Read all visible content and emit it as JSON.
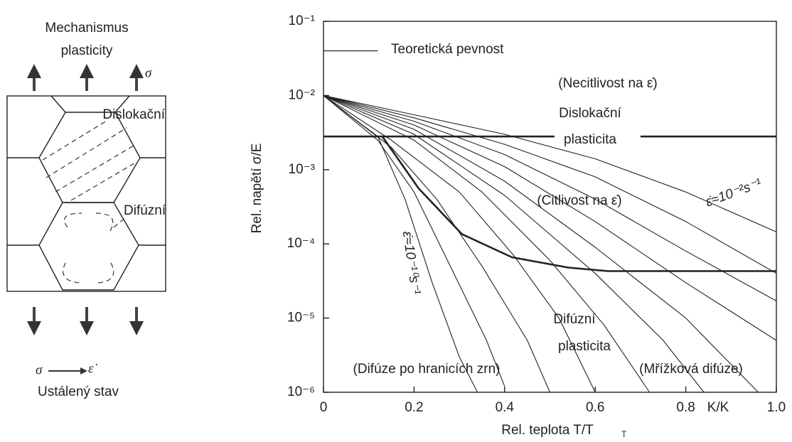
{
  "diagram": {
    "title_lines": [
      "Mechanismus",
      "plasticity"
    ],
    "sigma": "σ",
    "dislocation_label": "Dislokační",
    "diffusion_label": "Difúzní",
    "relation_left": "σ",
    "relation_right": "ε̇",
    "caption": "Ustálený stav"
  },
  "chart_data": {
    "type": "line",
    "y_label": "Rel. napětí σ/E",
    "x_label": "Rel. teplota T/T",
    "x_label_subscript": "T",
    "annotations": [
      "Teoretická pevnost",
      "(Necitlivost na ε̇)",
      "Dislokační",
      "plasticita",
      "(Citlivost na ε̇)",
      "Difúzní",
      "plasticita",
      "(Difúze po hranicích zrn)",
      "(Mřížková difúze)",
      "ε̇≈10⁻²s⁻¹",
      "ε̇≈10⁻¹⁰s⁻¹",
      "K/K"
    ],
    "xlim": [
      0,
      1
    ],
    "ylim": [
      1e-06,
      0.1
    ],
    "log_y": true,
    "xticks": [
      0,
      0.2,
      0.4,
      0.6,
      0.8,
      {
        "value": 1,
        "label": "1.0"
      }
    ],
    "yticks": [
      {
        "value": 1e-06,
        "label": "10⁻⁶"
      },
      {
        "value": 1e-05,
        "label": "10⁻⁵"
      },
      {
        "value": 0.0001,
        "label": "10⁻⁴"
      },
      {
        "value": 0.001,
        "label": "10⁻³"
      },
      {
        "value": 0.01,
        "label": "10⁻²"
      },
      {
        "value": 0.1,
        "label": "10⁻¹"
      }
    ],
    "series": [
      {
        "color": "#222222",
        "line_width": 1.3,
        "x": [
          0,
          0.12
        ],
        "values": [
          0.04,
          0.04
        ]
      },
      {
        "color": "#222222",
        "line_width": 2.6,
        "x": [
          0,
          0.51,
          0.6,
          0.7,
          1
        ],
        "values": [
          0.0028,
          0.0028,
          null,
          0.0028,
          0.0028
        ]
      },
      {
        "color": "#222222",
        "line_width": 2.6,
        "x": [
          0.13,
          0.21,
          0.306,
          0.416,
          0.54,
          0.628,
          1
        ],
        "values": [
          0.0028,
          0.00056,
          0.000135,
          6.6e-05,
          4.8e-05,
          4.3e-05,
          4.3e-05
        ]
      },
      {
        "color": "#222222",
        "line_width": 1.1,
        "x": [
          0,
          0.2,
          0.4,
          0.6,
          0.8,
          1
        ],
        "values": [
          0.01,
          0.0055,
          0.003,
          0.0014,
          0.0005,
          0.000145
        ]
      },
      {
        "color": "#222222",
        "line_width": 1.1,
        "x": [
          0,
          0.2,
          0.4,
          0.6,
          0.8,
          1
        ],
        "values": [
          0.01,
          0.005,
          0.0022,
          0.0008,
          0.0002,
          4e-05
        ]
      },
      {
        "color": "#222222",
        "line_width": 1.1,
        "x": [
          0,
          0.2,
          0.4,
          0.6,
          0.8,
          1
        ],
        "values": [
          0.01,
          0.0045,
          0.0016,
          0.0004,
          8e-05,
          1.7e-05
        ]
      },
      {
        "color": "#222222",
        "line_width": 1.1,
        "x": [
          0,
          0.2,
          0.4,
          0.6,
          0.8,
          1
        ],
        "values": [
          0.01,
          0.004,
          0.0011,
          0.0002,
          3e-05,
          5e-06
        ]
      },
      {
        "color": "#222222",
        "line_width": 1.1,
        "x": [
          0,
          0.2,
          0.4,
          0.6,
          0.8,
          0.96
        ],
        "values": [
          0.01,
          0.0035,
          0.0007,
          9e-05,
          1e-05,
          1e-06
        ]
      },
      {
        "color": "#222222",
        "line_width": 1.1,
        "x": [
          0,
          0.2,
          0.4,
          0.6,
          0.75,
          0.84
        ],
        "values": [
          0.01,
          0.003,
          0.00045,
          4e-05,
          5e-06,
          1e-06
        ]
      },
      {
        "color": "#222222",
        "line_width": 1.1,
        "x": [
          0,
          0.2,
          0.35,
          0.5,
          0.62,
          0.72
        ],
        "values": [
          0.01,
          0.0025,
          0.0005,
          6e-05,
          8e-06,
          1e-06
        ]
      },
      {
        "color": "#222222",
        "line_width": 1.1,
        "x": [
          0,
          0.15,
          0.3,
          0.42,
          0.52,
          0.6
        ],
        "values": [
          0.01,
          0.0025,
          0.0005,
          7e-05,
          1e-05,
          1e-06
        ]
      },
      {
        "color": "#222222",
        "line_width": 1.1,
        "x": [
          0,
          0.15,
          0.25,
          0.35,
          0.45,
          0.5
        ],
        "values": [
          0.01,
          0.002,
          0.0004,
          5e-05,
          5e-06,
          1e-06
        ]
      },
      {
        "color": "#222222",
        "line_width": 1.1,
        "x": [
          0,
          0.12,
          0.2,
          0.28,
          0.36,
          0.4
        ],
        "values": [
          0.01,
          0.0025,
          0.0005,
          5e-05,
          5e-06,
          1.2e-06
        ]
      },
      {
        "color": "#222222",
        "line_width": 1.1,
        "x": [
          0,
          0.12,
          0.18,
          0.24,
          0.3,
          0.34
        ],
        "values": [
          0.01,
          0.0028,
          0.0004,
          3e-05,
          3e-06,
          1e-06
        ]
      }
    ]
  }
}
